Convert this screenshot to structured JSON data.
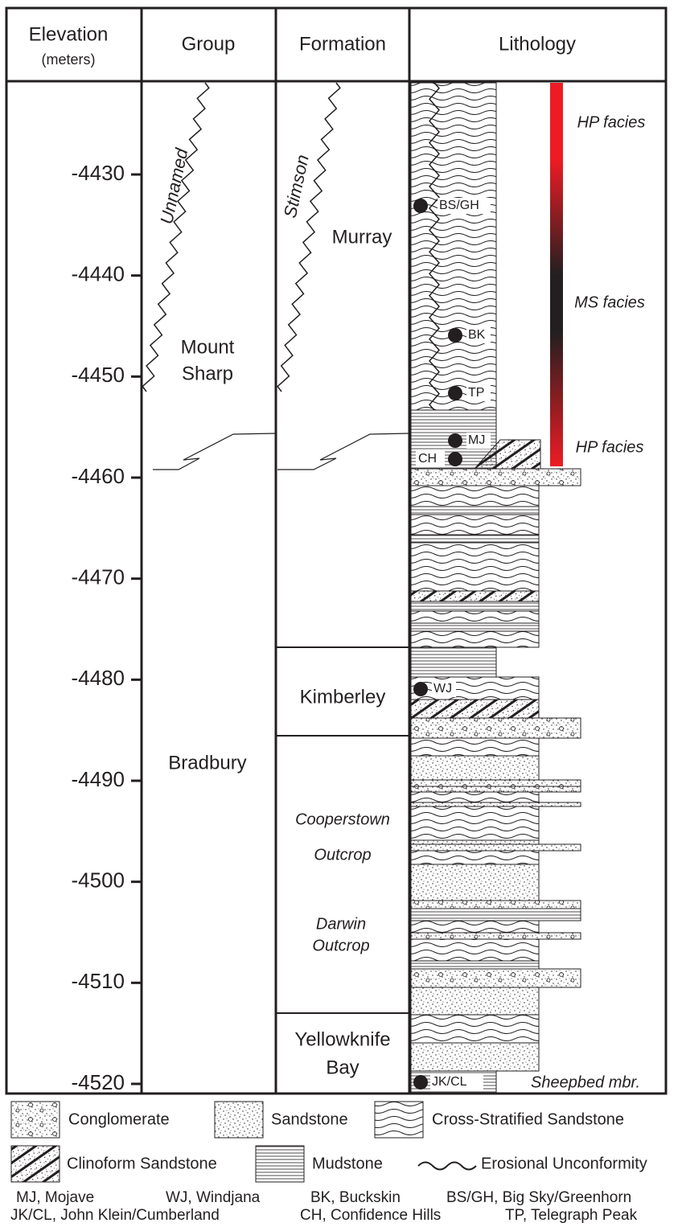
{
  "header": {
    "elevation": "Elevation",
    "elevation_unit": "(meters)",
    "group": "Group",
    "formation": "Formation",
    "lithology": "Lithology"
  },
  "elevation_ticks": [
    -4430,
    -4440,
    -4450,
    -4460,
    -4470,
    -4480,
    -4490,
    -4500,
    -4510,
    -4520
  ],
  "groups": {
    "unnamed": "Unnamed",
    "mount_sharp": [
      "Mount",
      "Sharp"
    ],
    "bradbury": "Bradbury"
  },
  "formations": {
    "stimson": "Stimson",
    "murray": "Murray",
    "kimberley": "Kimberley",
    "cooperstown": [
      "Cooperstown",
      "Outcrop"
    ],
    "darwin": [
      "Darwin",
      "Outcrop"
    ],
    "yellowknife": [
      "Yellowknife",
      "Bay"
    ]
  },
  "samples": [
    "BS/GH",
    "BK",
    "TP",
    "MJ",
    "CH",
    "WJ",
    "JK/CL"
  ],
  "facies": [
    "HP facies",
    "MS facies",
    "HP facies"
  ],
  "member": "Sheepbed mbr.",
  "legend": [
    "Conglomerate",
    "Sandstone",
    "Cross-Stratified Sandstone",
    "Clinoform Sandstone",
    "Mudstone",
    "Erosional Unconformity"
  ],
  "abbreviations": [
    "MJ, Mojave",
    "WJ, Windjana",
    "BK, Buckskin",
    "BS/GH, Big Sky/Greenhorn",
    "JK/CL, John Klein/Cumberland",
    "CH, Confidence Hills",
    "TP, Telegraph Peak"
  ]
}
